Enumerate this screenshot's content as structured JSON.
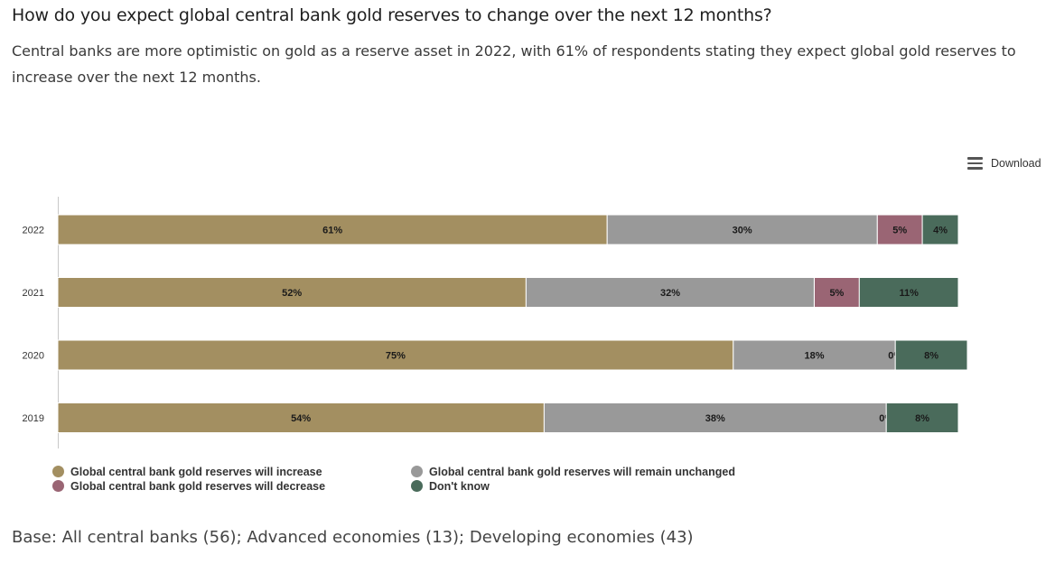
{
  "title": "How do you expect global central bank gold reserves to change over the next 12 months?",
  "subtitle": "Central banks are more optimistic on gold as a reserve asset in 2022, with 61% of respondents stating they expect global gold reserves to increase over the next 12 months.",
  "download_label": "Download",
  "base_note": "Base: All central banks (56); Advanced economies (13); Developing economies (43)",
  "chart_data": {
    "type": "bar",
    "orientation": "horizontal",
    "stacked": true,
    "categories": [
      "2022",
      "2021",
      "2020",
      "2019"
    ],
    "series": [
      {
        "name": "Global central bank gold reserves will increase",
        "values": [
          61,
          52,
          75,
          54
        ],
        "color": "#a38f61",
        "labels": [
          "61%",
          "52%",
          "75%",
          "54%"
        ]
      },
      {
        "name": "Global central bank gold reserves will remain unchanged",
        "values": [
          30,
          32,
          18,
          38
        ],
        "color": "#999999",
        "labels": [
          "30%",
          "32%",
          "18%",
          "38%"
        ]
      },
      {
        "name": "Global central bank gold reserves will decrease",
        "values": [
          5,
          5,
          0,
          0
        ],
        "color": "#9a6574",
        "labels": [
          "5%",
          "5%",
          "0%",
          "0%"
        ]
      },
      {
        "name": "Don't know",
        "values": [
          4,
          11,
          8,
          8
        ],
        "color": "#4a6b5b",
        "labels": [
          "4%",
          "11%",
          "8%",
          "8%"
        ]
      }
    ],
    "xlim": [
      0,
      100
    ],
    "grid": false,
    "legend_position": "bottom-left"
  }
}
